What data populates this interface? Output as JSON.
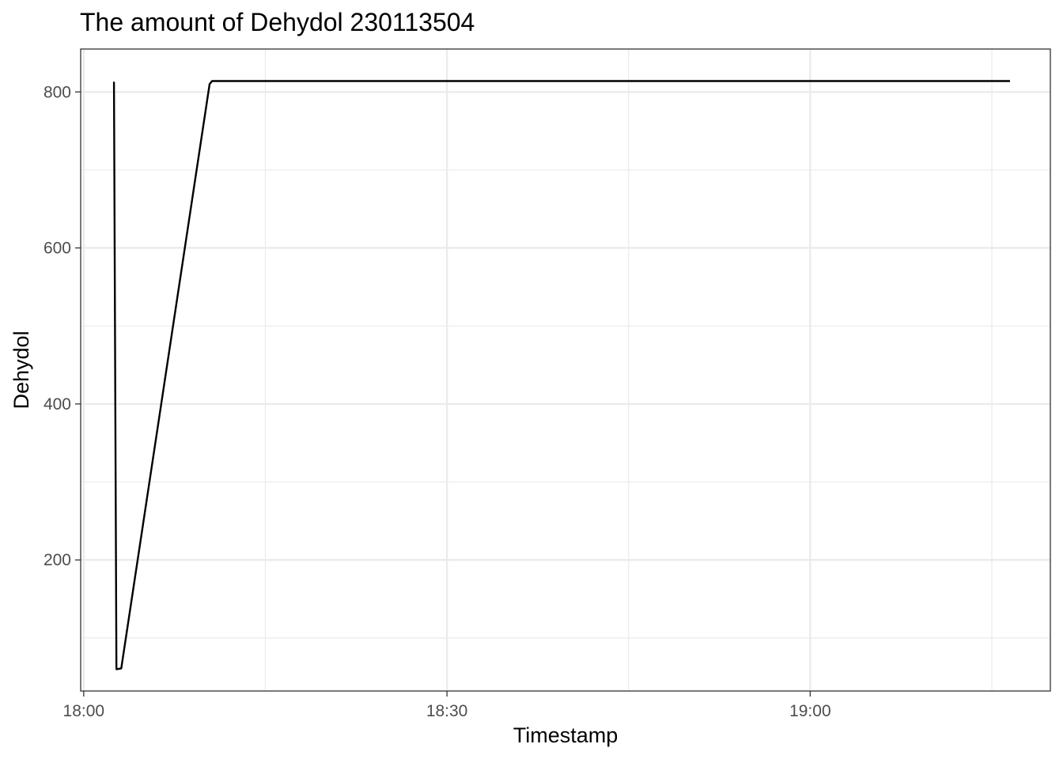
{
  "chart_data": {
    "type": "line",
    "title": "The amount of Dehydol 230113504",
    "xlabel": "Timestamp",
    "ylabel": "Dehydol",
    "x_unit": "time (HH:MM)",
    "xlim": [
      "17:59:45",
      "19:19:50"
    ],
    "ylim": [
      32,
      855
    ],
    "x_ticks": [
      {
        "value": "18:00:00",
        "label": "18:00"
      },
      {
        "value": "18:30:00",
        "label": "18:30"
      },
      {
        "value": "19:00:00",
        "label": "19:00"
      }
    ],
    "x_minor_ticks": [
      "18:15:00",
      "18:45:00",
      "19:15:00"
    ],
    "y_ticks": [
      200,
      400,
      600,
      800
    ],
    "y_minor_ticks": [
      100,
      300,
      500,
      700
    ],
    "grid": true,
    "legend": "none",
    "series": [
      {
        "color": "#000000",
        "points": [
          {
            "x": "18:02:30",
            "y": 813
          },
          {
            "x": "18:02:42",
            "y": 60
          },
          {
            "x": "18:03:06",
            "y": 61
          },
          {
            "x": "18:10:24",
            "y": 810
          },
          {
            "x": "18:10:36",
            "y": 814
          },
          {
            "x": "19:16:30",
            "y": 814
          }
        ]
      }
    ]
  }
}
